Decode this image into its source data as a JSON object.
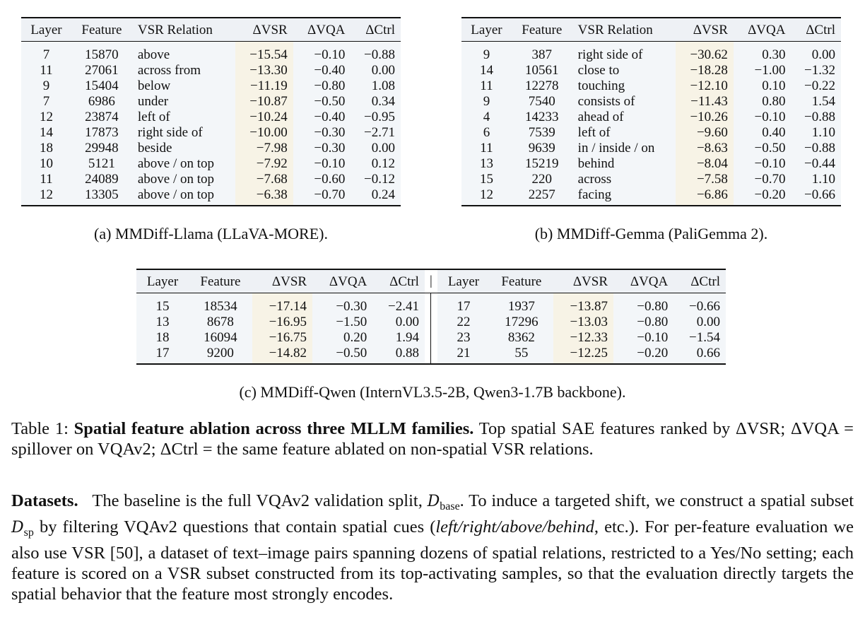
{
  "table_a": {
    "headers": [
      "Layer",
      "Feature",
      "VSR Relation",
      "ΔVSR",
      "ΔVQA",
      "ΔCtrl"
    ],
    "rows": [
      [
        "7",
        "15870",
        "above",
        "−15.54",
        "−0.10",
        "−0.88"
      ],
      [
        "11",
        "27061",
        "across from",
        "−13.30",
        "−0.40",
        "0.00"
      ],
      [
        "9",
        "15404",
        "below",
        "−11.19",
        "−0.80",
        "1.08"
      ],
      [
        "7",
        "6986",
        "under",
        "−10.87",
        "−0.50",
        "0.34"
      ],
      [
        "12",
        "23874",
        "left of",
        "−10.24",
        "−0.40",
        "−0.95"
      ],
      [
        "14",
        "17873",
        "right side of",
        "−10.00",
        "−0.30",
        "−2.71"
      ],
      [
        "18",
        "29948",
        "beside",
        "−7.98",
        "−0.30",
        "0.00"
      ],
      [
        "10",
        "5121",
        "above / on top",
        "−7.92",
        "−0.10",
        "0.12"
      ],
      [
        "11",
        "24089",
        "above / on top",
        "−7.68",
        "−0.60",
        "−0.12"
      ],
      [
        "12",
        "13305",
        "above / on top",
        "−6.38",
        "−0.70",
        "0.24"
      ]
    ],
    "caption": "(a) MMDiff-Llama (LLaVA-MORE)."
  },
  "table_b": {
    "headers": [
      "Layer",
      "Feature",
      "VSR Relation",
      "ΔVSR",
      "ΔVQA",
      "ΔCtrl"
    ],
    "rows": [
      [
        "9",
        "387",
        "right side of",
        "−30.62",
        "0.30",
        "0.00"
      ],
      [
        "14",
        "10561",
        "close to",
        "−18.28",
        "−1.00",
        "−1.32"
      ],
      [
        "11",
        "12278",
        "touching",
        "−12.10",
        "0.10",
        "−0.22"
      ],
      [
        "9",
        "7540",
        "consists of",
        "−11.43",
        "0.80",
        "1.54"
      ],
      [
        "4",
        "14233",
        "ahead of",
        "−10.26",
        "−0.10",
        "−0.88"
      ],
      [
        "6",
        "7539",
        "left of",
        "−9.60",
        "0.40",
        "1.10"
      ],
      [
        "11",
        "9639",
        "in / inside / on",
        "−8.63",
        "−0.50",
        "−0.88"
      ],
      [
        "13",
        "15219",
        "behind",
        "−8.04",
        "−0.10",
        "−0.44"
      ],
      [
        "15",
        "220",
        "across",
        "−7.58",
        "−0.70",
        "1.10"
      ],
      [
        "12",
        "2257",
        "facing",
        "−6.86",
        "−0.20",
        "−0.66"
      ]
    ],
    "caption": "(b) MMDiff-Gemma (PaliGemma 2)."
  },
  "table_c": {
    "headers": [
      "Layer",
      "Feature",
      "ΔVSR",
      "ΔVQA",
      "ΔCtrl"
    ],
    "left_rows": [
      [
        "15",
        "18534",
        "−17.14",
        "−0.30",
        "−2.41"
      ],
      [
        "13",
        "8678",
        "−16.95",
        "−1.50",
        "0.00"
      ],
      [
        "18",
        "16094",
        "−16.75",
        "0.20",
        "1.94"
      ],
      [
        "17",
        "9200",
        "−14.82",
        "−0.50",
        "0.88"
      ]
    ],
    "right_rows": [
      [
        "17",
        "1937",
        "−13.87",
        "−0.80",
        "−0.66"
      ],
      [
        "22",
        "17296",
        "−13.03",
        "−0.80",
        "0.00"
      ],
      [
        "23",
        "8362",
        "−12.33",
        "−0.10",
        "−1.54"
      ],
      [
        "21",
        "55",
        "−12.25",
        "−0.20",
        "0.66"
      ]
    ],
    "caption": "(c) MMDiff-Qwen (InternVL3.5-2B, Qwen3-1.7B backbone)."
  },
  "table_caption": {
    "label": "Table 1:",
    "title": "Spatial feature ablation across three MLLM families.",
    "body": "Top spatial SAE features ranked by ΔVSR; ΔVQA = spillover on VQAv2; ΔCtrl = the same feature ablated on non-spatial VSR relations."
  },
  "datasets": {
    "heading": "Datasets.",
    "t1": "The baseline is the full VQAv2 validation split,",
    "d_base_sym": "D",
    "d_base_sub": "base",
    "t2": ". To induce a targeted shift, we construct a spatial subset",
    "d_sp_sym": "D",
    "d_sp_sub": "sp",
    "t3": "by filtering VQAv2 questions that contain spatial cues (",
    "italic": "left/right/above/behind",
    "t4": ", etc.). For per-feature evaluation we also use VSR [50], a dataset of text–image pairs spanning dozens of spatial relations, restricted to a Yes/No setting; each feature is scored on a VSR subset constructed from its top-activating samples, so that the evaluation directly targets the spatial behavior that the feature most strongly encodes."
  }
}
